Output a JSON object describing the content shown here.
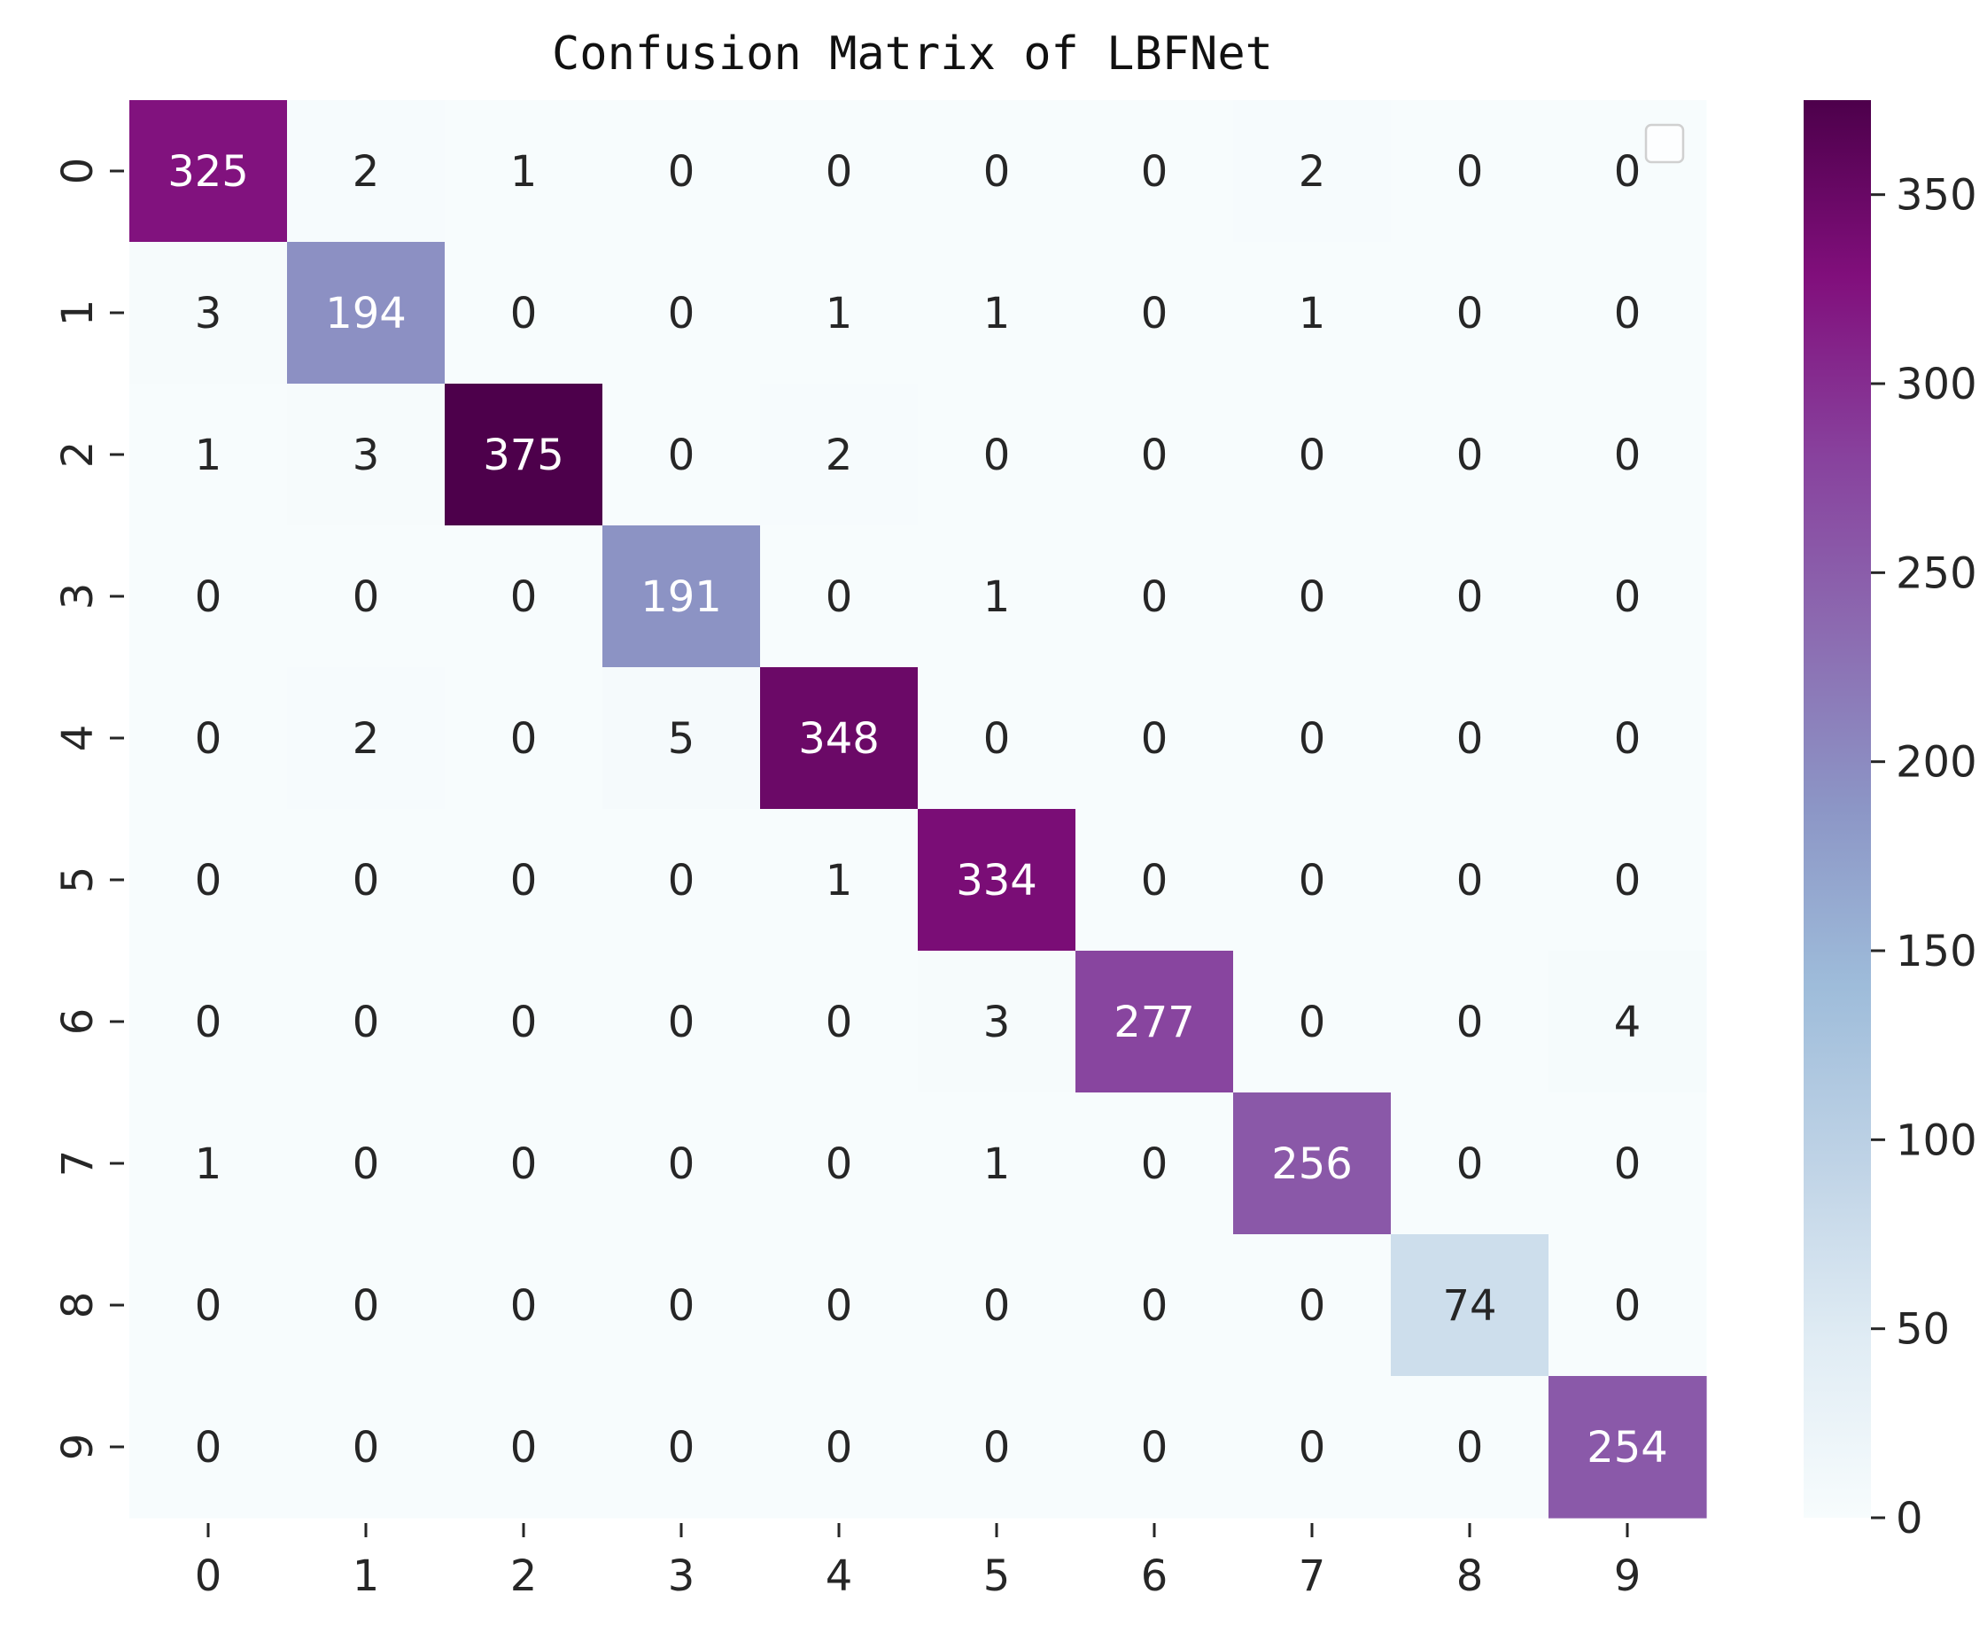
{
  "chart_data": {
    "type": "heatmap",
    "title": "Confusion Matrix of LBFNet",
    "xlabel": "",
    "ylabel": "",
    "x_categories": [
      "0",
      "1",
      "2",
      "3",
      "4",
      "5",
      "6",
      "7",
      "8",
      "9"
    ],
    "y_categories": [
      "0",
      "1",
      "2",
      "3",
      "4",
      "5",
      "6",
      "7",
      "8",
      "9"
    ],
    "values": [
      [
        325,
        2,
        1,
        0,
        0,
        0,
        0,
        2,
        0,
        0
      ],
      [
        3,
        194,
        0,
        0,
        1,
        1,
        0,
        1,
        0,
        0
      ],
      [
        1,
        3,
        375,
        0,
        2,
        0,
        0,
        0,
        0,
        0
      ],
      [
        0,
        0,
        0,
        191,
        0,
        1,
        0,
        0,
        0,
        0
      ],
      [
        0,
        2,
        0,
        5,
        348,
        0,
        0,
        0,
        0,
        0
      ],
      [
        0,
        0,
        0,
        0,
        1,
        334,
        0,
        0,
        0,
        0
      ],
      [
        0,
        0,
        0,
        0,
        0,
        3,
        277,
        0,
        0,
        4
      ],
      [
        1,
        0,
        0,
        0,
        0,
        1,
        0,
        256,
        0,
        0
      ],
      [
        0,
        0,
        0,
        0,
        0,
        0,
        0,
        0,
        74,
        0
      ],
      [
        0,
        0,
        0,
        0,
        0,
        0,
        0,
        0,
        0,
        254
      ]
    ],
    "colorbar": {
      "min": 0,
      "max": 375,
      "ticks": [
        0,
        50,
        100,
        150,
        200,
        250,
        300,
        350
      ],
      "colormap": "BuPu",
      "colors": [
        "#f7fcfd",
        "#e0ecf4",
        "#bfd3e6",
        "#9ebcda",
        "#8c96c6",
        "#8c6bb1",
        "#88419d",
        "#810f7c",
        "#4d004b"
      ]
    },
    "annotation_color_light": "#ffffff",
    "annotation_color_dark": "#262626",
    "legend": "empty-box-top-right"
  }
}
